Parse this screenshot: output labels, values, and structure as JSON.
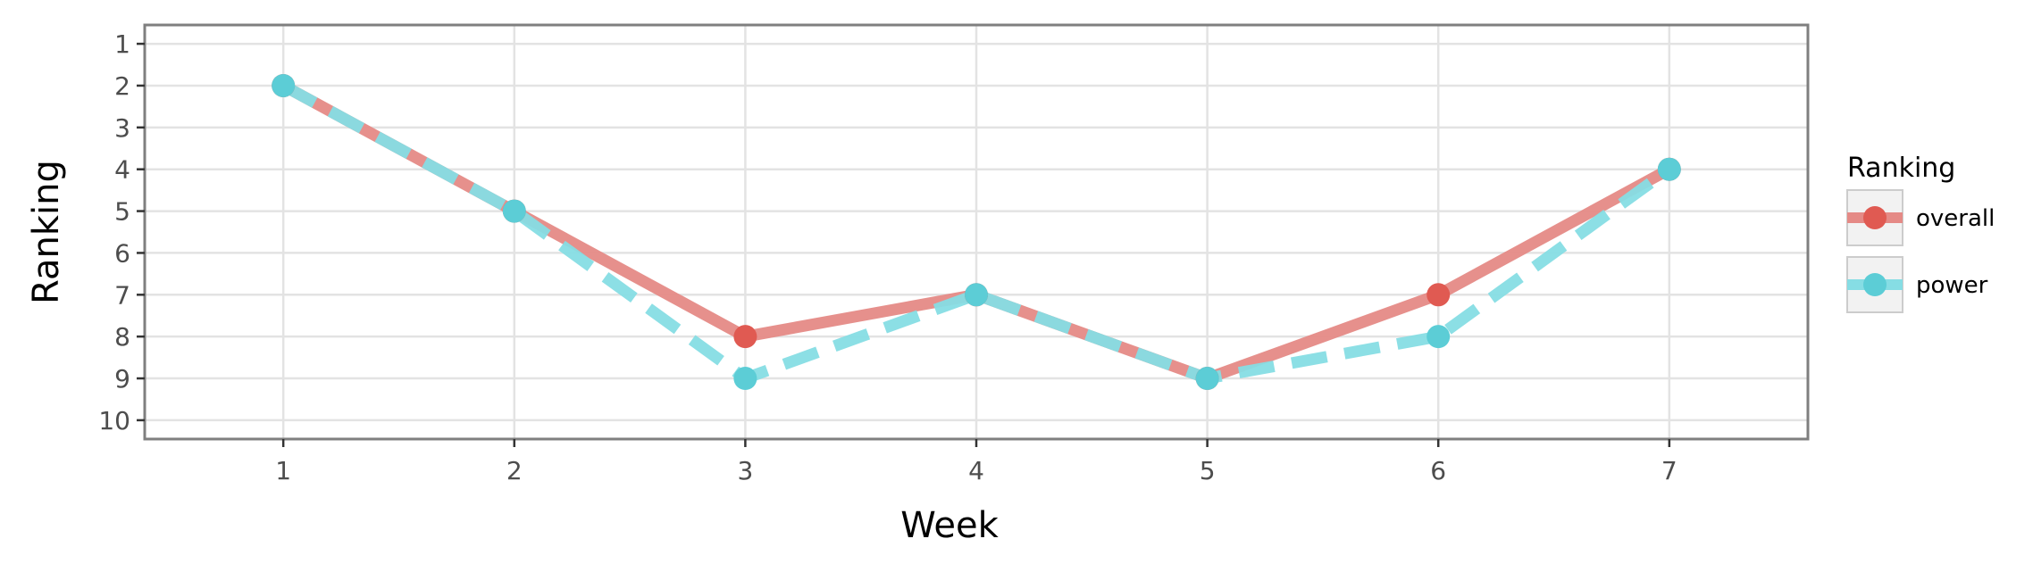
{
  "chart_data": {
    "type": "line",
    "title": "",
    "xlabel": "Week",
    "ylabel": "Ranking",
    "x": [
      1,
      2,
      3,
      4,
      5,
      6,
      7
    ],
    "x_ticks": [
      "1",
      "2",
      "3",
      "4",
      "5",
      "6",
      "7"
    ],
    "y_ticks": [
      "1",
      "2",
      "3",
      "4",
      "5",
      "6",
      "7",
      "8",
      "9",
      "10"
    ],
    "xlim": [
      0.4,
      7.6
    ],
    "ylim": [
      0.55,
      10.45
    ],
    "y_reversed": true,
    "grid": true,
    "legend_position": "right",
    "legend_title": "Ranking",
    "series": [
      {
        "name": "overall",
        "values": [
          2,
          5,
          8,
          7,
          9,
          7,
          4
        ],
        "color": "#e58a86",
        "point_color": "#e05a52",
        "line_style": "solid"
      },
      {
        "name": "power",
        "values": [
          2,
          5,
          9,
          7,
          9,
          8,
          4
        ],
        "color": "#86dde4",
        "point_color": "#5ccdd6",
        "line_style": "dashed"
      }
    ]
  }
}
